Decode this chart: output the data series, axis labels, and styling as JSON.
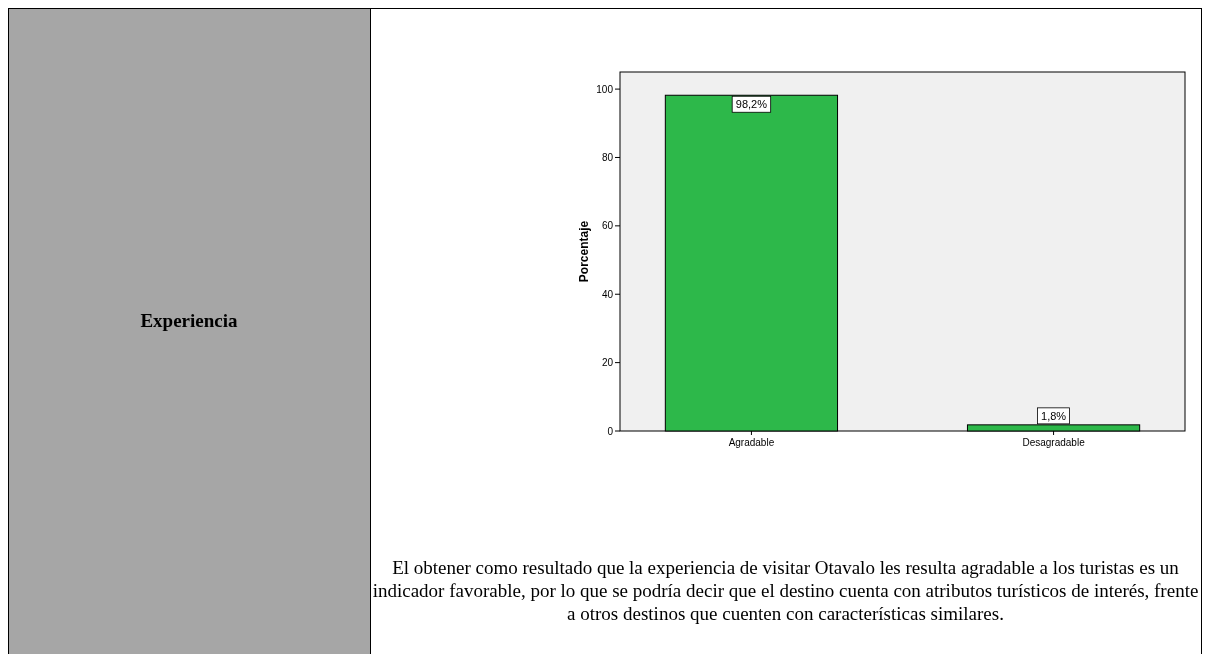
{
  "chart_data": {
    "type": "bar",
    "title": "Experiencia",
    "ylabel": "Porcentaje",
    "categories": [
      "Agradable",
      "Desagradable"
    ],
    "values": [
      98.2,
      1.8
    ],
    "value_labels": [
      "98,2%",
      "1,8%"
    ],
    "color": "#2db84a",
    "ylim": [
      0,
      105
    ],
    "yticks": [
      0,
      20,
      40,
      60,
      80,
      100
    ],
    "annotations": [
      "El obtener como resultado que la experiencia de visitar Otavalo les resulta agradable a los turistas es un indicador favorable, por lo que se podría decir que el destino cuenta con atributos turísticos de interés, frente a otros destinos que cuenten con características similares."
    ]
  }
}
